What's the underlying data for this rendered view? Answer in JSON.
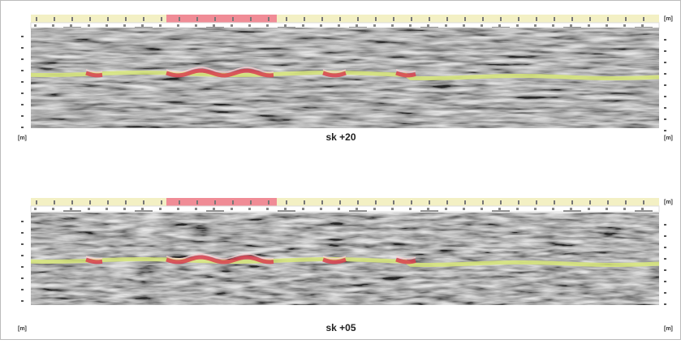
{
  "panels": [
    {
      "label": "sk +20",
      "unit_top": "[m]",
      "unit_left": "[m]",
      "unit_right": "[m]"
    },
    {
      "label": "sk +05",
      "unit_top": "[m]",
      "unit_left": "[m]",
      "unit_right": "[m]"
    }
  ]
}
